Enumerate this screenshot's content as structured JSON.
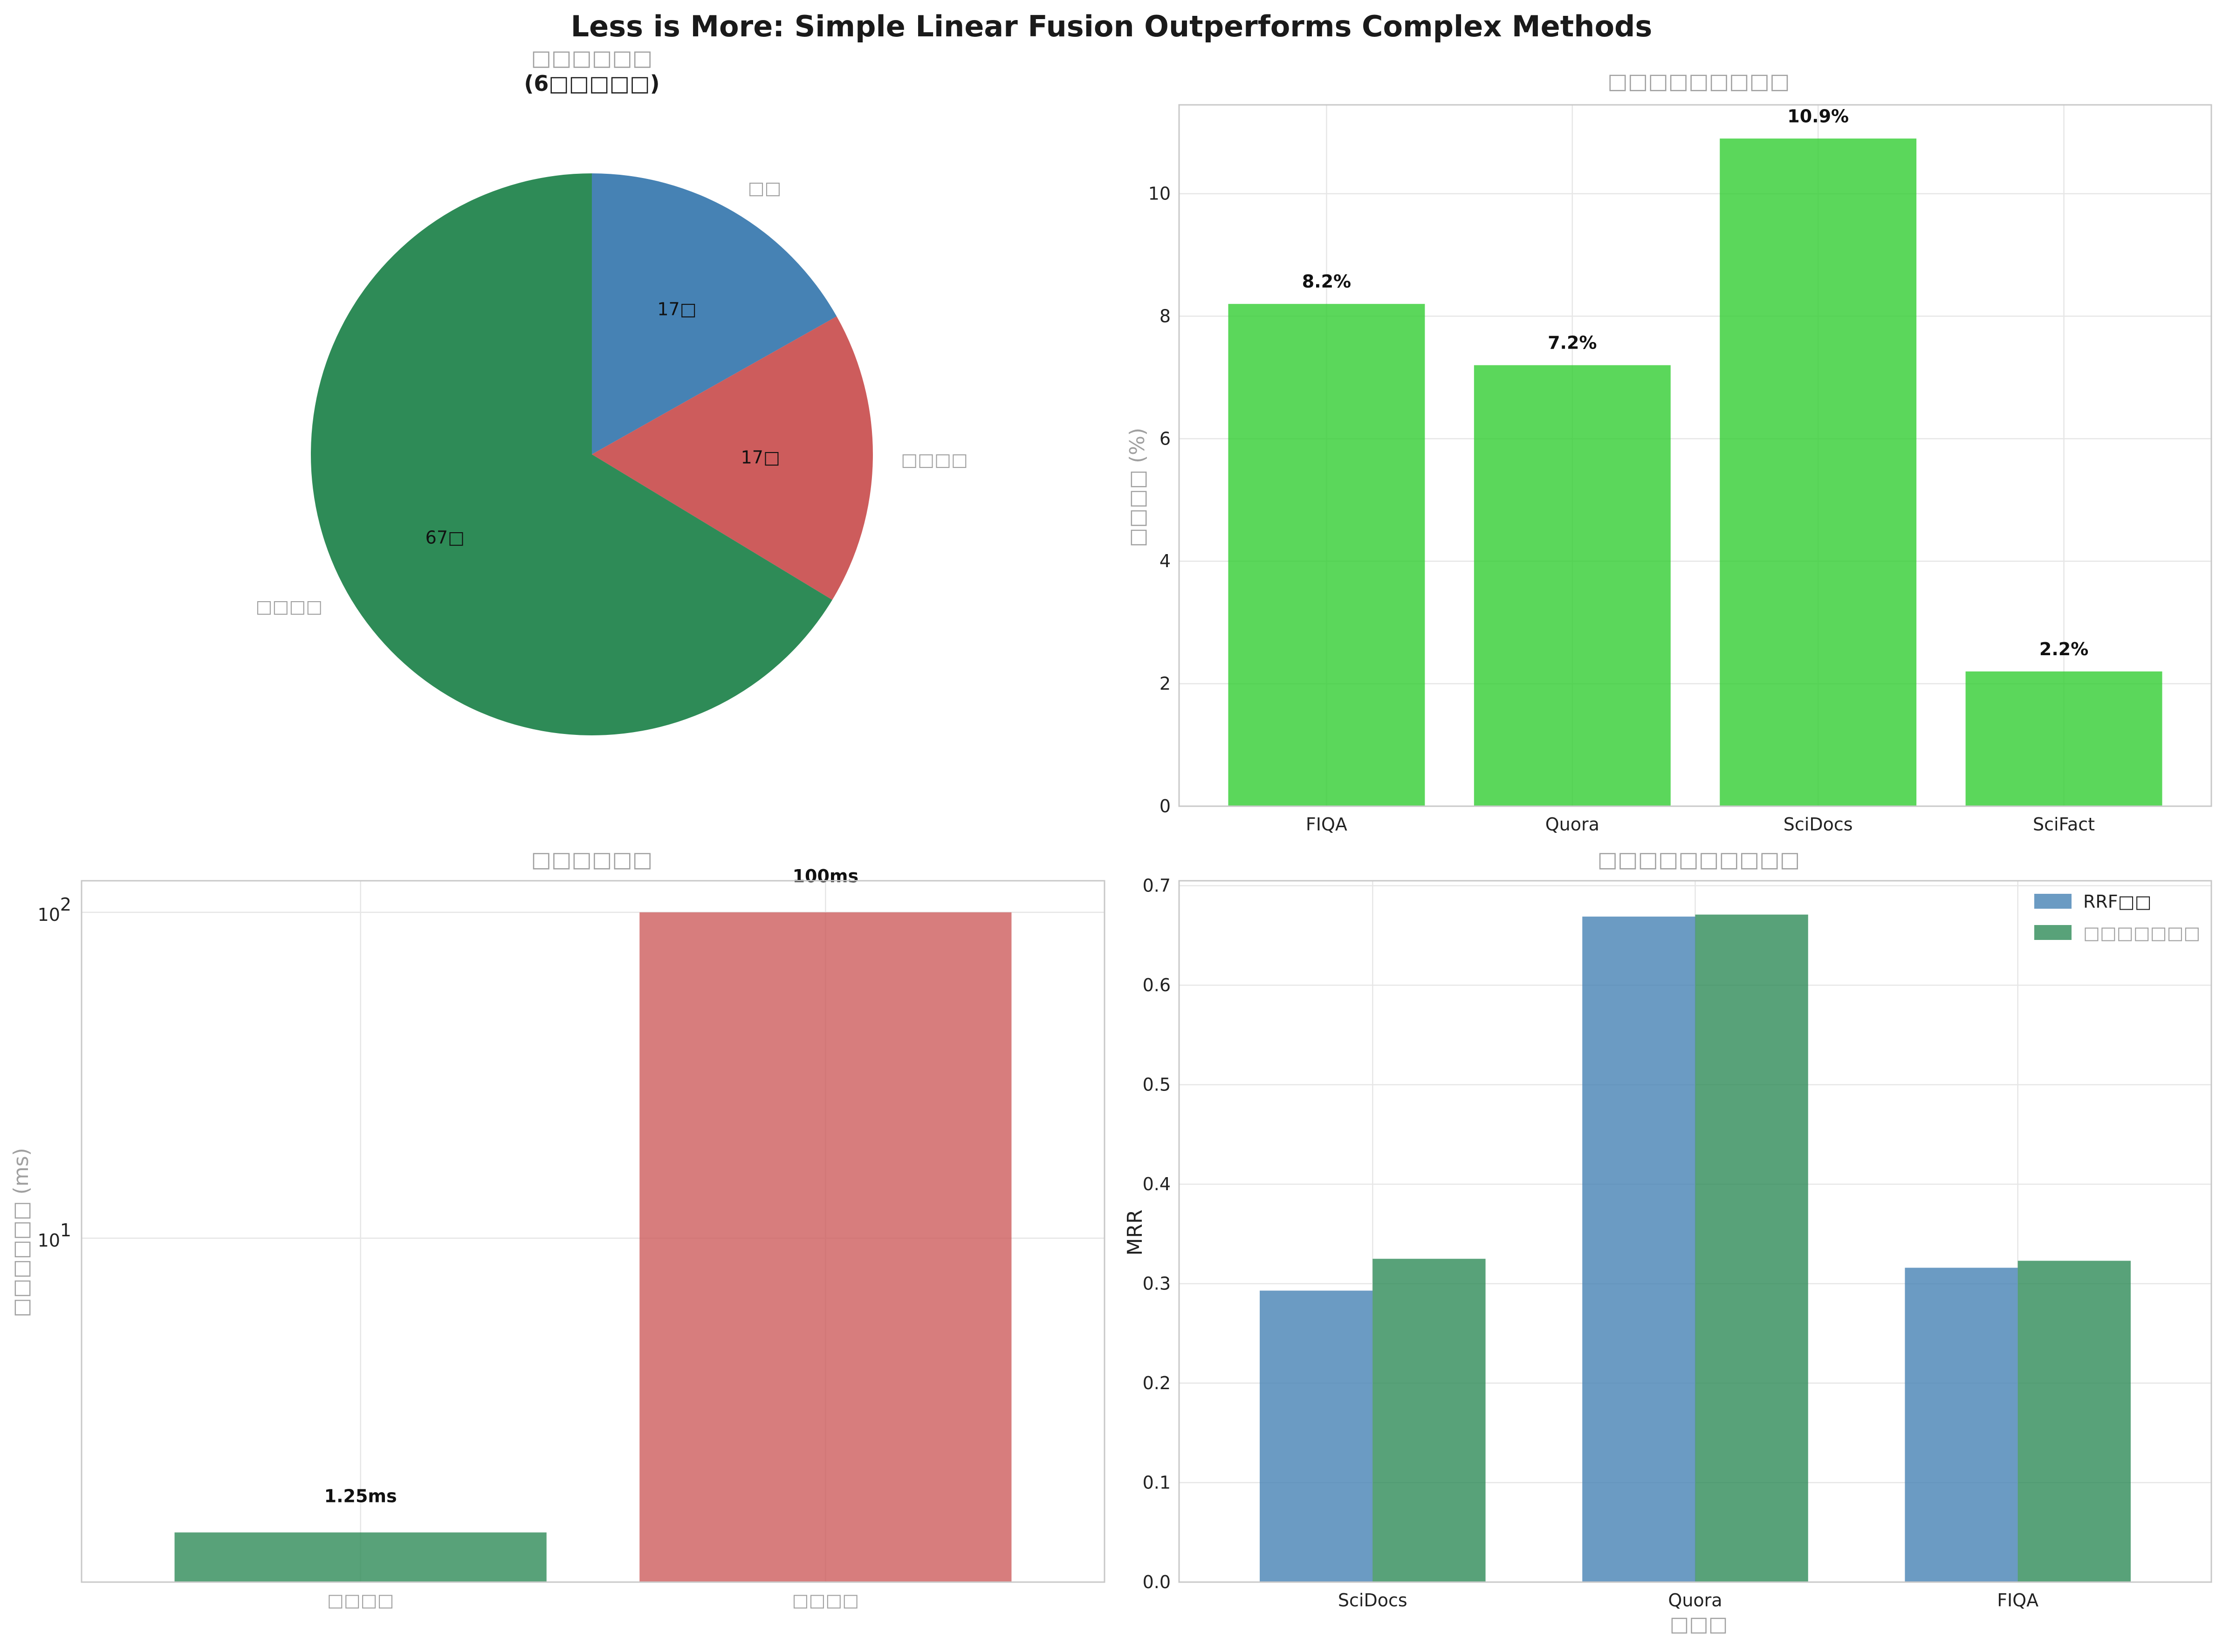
{
  "figure": {
    "title": "Less is More: Simple Linear Fusion Outperforms Complex Methods"
  },
  "chart_data": [
    {
      "type": "pie",
      "title_line1": "□□□□□□",
      "title_line2": "(6□□□□□)",
      "slices": [
        {
          "label": "□□",
          "value": 17,
          "pct_label": "17□",
          "color": "#4682b4"
        },
        {
          "label": "□□□□",
          "value": 17,
          "pct_label": "17□",
          "color": "#cd5c5c"
        },
        {
          "label": "□□□□",
          "value": 67,
          "pct_label": "67□",
          "color": "#2e8b57"
        }
      ],
      "start_angle": 90
    },
    {
      "type": "bar",
      "title": "□□□□□□□□□",
      "categories": [
        "FIQA",
        "Quora",
        "SciDocs",
        "SciFact"
      ],
      "values": [
        8.2,
        7.2,
        10.9,
        2.2
      ],
      "value_labels": [
        "8.2%",
        "7.2%",
        "10.9%",
        "2.2%"
      ],
      "ylabel": "□□□□ (%)",
      "ylim": [
        0,
        11.45
      ],
      "yticks": [
        0,
        2,
        4,
        6,
        8,
        10
      ],
      "color": "#32cd32",
      "grid": true
    },
    {
      "type": "bar",
      "title": "□□□□□□",
      "categories": [
        "□□□□",
        "□□□□"
      ],
      "values": [
        1.25,
        100
      ],
      "value_labels": [
        "1.25ms",
        "100ms"
      ],
      "colors": [
        "#2e8b57",
        "#cd5c5c"
      ],
      "ylabel": "□□□□□□ (ms)",
      "yscale": "log",
      "ylim": [
        0.88,
        125
      ],
      "yticks": [
        {
          "value": 10,
          "base": "10",
          "exp": "1"
        },
        {
          "value": 100,
          "base": "10",
          "exp": "2"
        }
      ],
      "grid": true
    },
    {
      "type": "bar",
      "title": "□□□□□□□□□□",
      "categories": [
        "SciDocs",
        "Quora",
        "FIQA"
      ],
      "series": [
        {
          "name": "RRF□□",
          "values": [
            0.293,
            0.669,
            0.316
          ],
          "color": "#4682b4"
        },
        {
          "name": "□□□□□□□",
          "values": [
            0.325,
            0.671,
            0.323
          ],
          "color": "#2e8b57"
        }
      ],
      "xlabel": "□□□",
      "ylabel": "MRR",
      "ylim": [
        0,
        0.705
      ],
      "yticks": [
        0.0,
        0.1,
        0.2,
        0.3,
        0.4,
        0.5,
        0.6,
        0.7
      ],
      "legend": "top-right",
      "grid": true
    }
  ]
}
